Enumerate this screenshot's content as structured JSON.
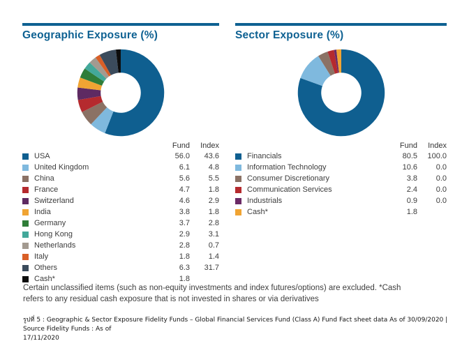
{
  "page": {
    "background": "#ffffff",
    "accent_color": "#0e6192"
  },
  "chart_data": [
    {
      "type": "pie",
      "variant": "donut",
      "title": "Geographic Exposure (%)",
      "legend_position": "bottom",
      "legend_headers": [
        "Fund",
        "Index"
      ],
      "start_angle": "12-oclock-clockwise",
      "series": [
        {
          "label": "USA",
          "fund": "56.0",
          "index": "43.6",
          "color": "#0f5f90"
        },
        {
          "label": "United Kingdom",
          "fund": "6.1",
          "index": "4.8",
          "color": "#7fb9de"
        },
        {
          "label": "China",
          "fund": "5.6",
          "index": "5.5",
          "color": "#8b7265"
        },
        {
          "label": "France",
          "fund": "4.7",
          "index": "1.8",
          "color": "#b52a2e"
        },
        {
          "label": "Switzerland",
          "fund": "4.6",
          "index": "2.9",
          "color": "#5e2a62"
        },
        {
          "label": "India",
          "fund": "3.8",
          "index": "1.8",
          "color": "#f0a433"
        },
        {
          "label": "Germany",
          "fund": "3.7",
          "index": "2.8",
          "color": "#2f7d38"
        },
        {
          "label": "Hong Kong",
          "fund": "2.9",
          "index": "3.1",
          "color": "#43a89a"
        },
        {
          "label": "Netherlands",
          "fund": "2.8",
          "index": "0.7",
          "color": "#a39a90"
        },
        {
          "label": "Italy",
          "fund": "1.8",
          "index": "1.4",
          "color": "#d95f27"
        },
        {
          "label": "Others",
          "fund": "6.3",
          "index": "31.7",
          "color": "#3b4b5c"
        },
        {
          "label": "Cash*",
          "fund": "1.8",
          "index": "",
          "color": "#0d0d0d"
        }
      ]
    },
    {
      "type": "pie",
      "variant": "donut",
      "title": "Sector Exposure (%)",
      "legend_position": "bottom",
      "legend_headers": [
        "Fund",
        "Index"
      ],
      "start_angle": "12-oclock-clockwise",
      "series": [
        {
          "label": "Financials",
          "fund": "80.5",
          "index": "100.0",
          "color": "#0f5f90"
        },
        {
          "label": "Information Technology",
          "fund": "10.6",
          "index": "0.0",
          "color": "#7fb9de"
        },
        {
          "label": "Consumer Discretionary",
          "fund": "3.8",
          "index": "0.0",
          "color": "#8b7265"
        },
        {
          "label": "Communication Services",
          "fund": "2.4",
          "index": "0.0",
          "color": "#b52a2e"
        },
        {
          "label": "Industrials",
          "fund": "0.9",
          "index": "0.0",
          "color": "#6b2a66"
        },
        {
          "label": "Cash*",
          "fund": "1.8",
          "index": "",
          "color": "#f0a433"
        }
      ]
    }
  ],
  "note": {
    "lines": [
      "Certain unclassified items (such as non-equity investments and index futures/options) are excluded. *Cash",
      "refers to any residual cash exposure that is not invested in shares or via derivatives"
    ]
  },
  "caption": {
    "lines": [
      "รูปที่ 5 : Geographic & Sector Exposure Fidelity Funds – Global Financial Services Fund (Class A) Fund Fact sheet data As of 30/09/2020 | Source Fidelity Funds :  As of",
      "17/11/2020"
    ]
  }
}
